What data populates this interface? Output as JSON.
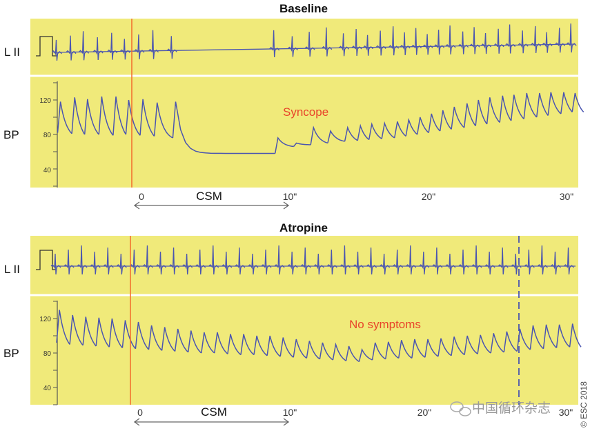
{
  "chart_data": [
    {
      "type": "line",
      "title": "Baseline",
      "lead_labels": {
        "ecg": "L II",
        "bp": "BP"
      },
      "y_ticks": [
        "120",
        "80",
        "40"
      ],
      "x_ticks": [
        "0",
        "10\"",
        "20\"",
        "30\""
      ],
      "interval_label": "CSM",
      "annotation": "Syncope",
      "ylim": [
        30,
        140
      ],
      "xlim_seconds": [
        -5.8,
        31
      ],
      "csm_interval_seconds": [
        0,
        10
      ],
      "bp_beats": {
        "t": [
          -5.6,
          -4.6,
          -3.7,
          -2.7,
          -1.7,
          -0.8,
          0.2,
          1.2,
          2.5,
          9.7,
          11.0,
          12.2,
          13.4,
          14.6,
          15.5,
          16.3,
          17.2,
          18.1,
          18.9,
          19.7,
          20.5,
          21.3,
          22.1,
          23.0,
          23.8,
          24.6,
          25.5,
          26.3,
          27.2,
          28.1,
          28.9,
          29.8,
          30.6
        ],
        "systolic": [
          118,
          123,
          121,
          124,
          124,
          120,
          121,
          117,
          118,
          76,
          70,
          88,
          84,
          88,
          90,
          92,
          93,
          95,
          97,
          100,
          104,
          108,
          112,
          116,
          120,
          123,
          125,
          126,
          128,
          128,
          129,
          129,
          128
        ],
        "diastolic": [
          82,
          81,
          80,
          80,
          79,
          80,
          79,
          78,
          76,
          58,
          66,
          68,
          70,
          72,
          73,
          74,
          75,
          76,
          78,
          80,
          82,
          84,
          86,
          88,
          90,
          92,
          94,
          96,
          98,
          100,
          102,
          104,
          106
        ]
      },
      "colors": {
        "panel": "#f0ea7a",
        "trace": "#4a55b0",
        "marker": "#f26a2a",
        "annotation": "#e8442a"
      }
    },
    {
      "type": "line",
      "title": "Atropine",
      "lead_labels": {
        "ecg": "L II",
        "bp": "BP"
      },
      "y_ticks": [
        "120",
        "80",
        "40"
      ],
      "x_ticks": [
        "0",
        "10\"",
        "20\"",
        "30\""
      ],
      "interval_label": "CSM",
      "annotation": "No symptoms",
      "ylim": [
        30,
        140
      ],
      "xlim_seconds": [
        -5.8,
        31
      ],
      "csm_interval_seconds": [
        0,
        10
      ],
      "bp_beats": {
        "t": [
          -5.7,
          -4.77,
          -3.84,
          -2.91,
          -1.98,
          -1.05,
          -0.12,
          0.81,
          1.74,
          2.67,
          3.6,
          4.53,
          5.46,
          6.39,
          7.32,
          8.25,
          9.18,
          10.11,
          11.04,
          11.97,
          12.9,
          13.83,
          14.76,
          15.69,
          16.62,
          17.55,
          18.48,
          19.41,
          20.34,
          21.27,
          22.2,
          23.13,
          24.06,
          24.99,
          25.92,
          26.85,
          27.78,
          28.71,
          29.64,
          30.57
        ],
        "systolic": [
          130,
          124,
          122,
          121,
          120,
          118,
          116,
          112,
          110,
          108,
          106,
          104,
          104,
          102,
          102,
          100,
          100,
          98,
          96,
          94,
          92,
          90,
          88,
          84,
          92,
          93,
          95,
          96,
          96,
          97,
          99,
          100,
          101,
          103,
          105,
          108,
          112,
          113,
          113,
          114
        ],
        "diastolic": [
          92,
          90,
          89,
          88,
          87,
          86,
          85,
          84,
          83,
          82,
          81,
          80,
          80,
          79,
          78,
          78,
          77,
          76,
          75,
          74,
          73,
          72,
          71,
          70,
          72,
          73,
          74,
          74,
          75,
          76,
          77,
          78,
          79,
          80,
          81,
          82,
          84,
          85,
          86,
          87
        ]
      },
      "colors": {
        "panel": "#f0ea7a",
        "trace": "#4a55b0",
        "marker": "#f26a2a",
        "annotation": "#e8442a"
      }
    }
  ],
  "watermark": "中国循环杂志",
  "copyright": "© ESC 2018"
}
